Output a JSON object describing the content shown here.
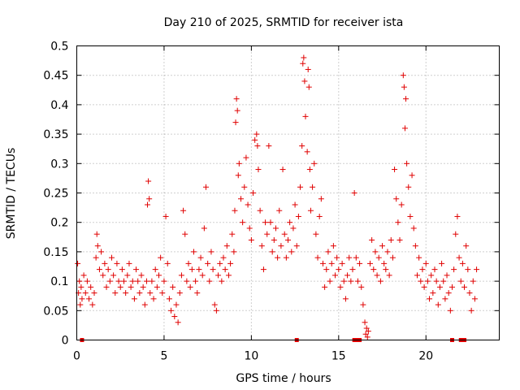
{
  "chart_data": {
    "type": "scatter",
    "title": "Day 210 of 2025, SRMTID for receiver ista",
    "xlabel": "GPS time / hours",
    "ylabel": "SRMTID / TECUs",
    "xlim": [
      0,
      24.2
    ],
    "ylim": [
      0,
      0.5
    ],
    "x_ticks": [
      "0",
      "5",
      "10",
      "15",
      "20"
    ],
    "y_ticks": [
      "0",
      "0.05",
      "0.1",
      "0.15",
      "0.2",
      "0.25",
      "0.3",
      "0.35",
      "0.4",
      "0.45",
      "0.5"
    ],
    "grid": true,
    "marker": "plus",
    "color": "#e00000",
    "series": [
      {
        "values_xy": [
          [
            0.05,
            0.13
          ],
          [
            0.1,
            0.08
          ],
          [
            0.15,
            0.1
          ],
          [
            0.2,
            0.06
          ],
          [
            0.25,
            0.09
          ],
          [
            0.3,
            0.07
          ],
          [
            0.4,
            0.11
          ],
          [
            0.5,
            0.08
          ],
          [
            0.6,
            0.1
          ],
          [
            0.7,
            0.07
          ],
          [
            0.8,
            0.09
          ],
          [
            0.9,
            0.06
          ],
          [
            1.0,
            0.08
          ],
          [
            1.1,
            0.14
          ],
          [
            1.15,
            0.18
          ],
          [
            1.2,
            0.16
          ],
          [
            1.3,
            0.12
          ],
          [
            1.4,
            0.15
          ],
          [
            1.5,
            0.11
          ],
          [
            1.6,
            0.13
          ],
          [
            1.7,
            0.09
          ],
          [
            1.8,
            0.12
          ],
          [
            1.9,
            0.1
          ],
          [
            2.0,
            0.14
          ],
          [
            2.1,
            0.11
          ],
          [
            2.2,
            0.08
          ],
          [
            2.3,
            0.13
          ],
          [
            2.4,
            0.1
          ],
          [
            2.5,
            0.09
          ],
          [
            2.6,
            0.12
          ],
          [
            2.7,
            0.1
          ],
          [
            2.8,
            0.08
          ],
          [
            2.9,
            0.11
          ],
          [
            3.0,
            0.13
          ],
          [
            3.1,
            0.09
          ],
          [
            3.2,
            0.1
          ],
          [
            3.3,
            0.07
          ],
          [
            3.4,
            0.12
          ],
          [
            3.5,
            0.1
          ],
          [
            3.6,
            0.08
          ],
          [
            3.7,
            0.11
          ],
          [
            3.8,
            0.09
          ],
          [
            3.9,
            0.06
          ],
          [
            4.0,
            0.1
          ],
          [
            4.05,
            0.23
          ],
          [
            4.1,
            0.27
          ],
          [
            4.15,
            0.24
          ],
          [
            4.2,
            0.08
          ],
          [
            4.3,
            0.1
          ],
          [
            4.4,
            0.07
          ],
          [
            4.5,
            0.12
          ],
          [
            4.6,
            0.09
          ],
          [
            4.7,
            0.11
          ],
          [
            4.8,
            0.14
          ],
          [
            4.9,
            0.08
          ],
          [
            5.0,
            0.1
          ],
          [
            5.1,
            0.21
          ],
          [
            5.2,
            0.13
          ],
          [
            5.3,
            0.07
          ],
          [
            5.4,
            0.05
          ],
          [
            5.5,
            0.09
          ],
          [
            5.6,
            0.04
          ],
          [
            5.7,
            0.06
          ],
          [
            5.8,
            0.03
          ],
          [
            5.9,
            0.08
          ],
          [
            6.0,
            0.11
          ],
          [
            6.1,
            0.22
          ],
          [
            6.2,
            0.18
          ],
          [
            6.3,
            0.1
          ],
          [
            6.4,
            0.13
          ],
          [
            6.5,
            0.09
          ],
          [
            6.6,
            0.12
          ],
          [
            6.7,
            0.15
          ],
          [
            6.8,
            0.1
          ],
          [
            6.9,
            0.08
          ],
          [
            7.0,
            0.12
          ],
          [
            7.1,
            0.14
          ],
          [
            7.2,
            0.11
          ],
          [
            7.3,
            0.19
          ],
          [
            7.4,
            0.26
          ],
          [
            7.5,
            0.13
          ],
          [
            7.6,
            0.1
          ],
          [
            7.7,
            0.15
          ],
          [
            7.8,
            0.12
          ],
          [
            7.9,
            0.06
          ],
          [
            8.0,
            0.05
          ],
          [
            8.1,
            0.11
          ],
          [
            8.2,
            0.13
          ],
          [
            8.3,
            0.1
          ],
          [
            8.4,
            0.14
          ],
          [
            8.5,
            0.12
          ],
          [
            8.6,
            0.16
          ],
          [
            8.7,
            0.11
          ],
          [
            8.8,
            0.13
          ],
          [
            8.9,
            0.18
          ],
          [
            9.0,
            0.15
          ],
          [
            9.05,
            0.22
          ],
          [
            9.1,
            0.37
          ],
          [
            9.15,
            0.41
          ],
          [
            9.2,
            0.39
          ],
          [
            9.25,
            0.28
          ],
          [
            9.3,
            0.3
          ],
          [
            9.4,
            0.24
          ],
          [
            9.5,
            0.2
          ],
          [
            9.6,
            0.26
          ],
          [
            9.7,
            0.31
          ],
          [
            9.8,
            0.23
          ],
          [
            9.9,
            0.19
          ],
          [
            10.0,
            0.17
          ],
          [
            10.1,
            0.25
          ],
          [
            10.2,
            0.34
          ],
          [
            10.3,
            0.35
          ],
          [
            10.35,
            0.33
          ],
          [
            10.4,
            0.29
          ],
          [
            10.5,
            0.22
          ],
          [
            10.6,
            0.16
          ],
          [
            10.7,
            0.12
          ],
          [
            10.8,
            0.2
          ],
          [
            10.9,
            0.18
          ],
          [
            11.0,
            0.33
          ],
          [
            11.1,
            0.2
          ],
          [
            11.2,
            0.15
          ],
          [
            11.3,
            0.17
          ],
          [
            11.4,
            0.19
          ],
          [
            11.5,
            0.14
          ],
          [
            11.6,
            0.22
          ],
          [
            11.7,
            0.16
          ],
          [
            11.8,
            0.29
          ],
          [
            11.9,
            0.18
          ],
          [
            12.0,
            0.14
          ],
          [
            12.1,
            0.17
          ],
          [
            12.2,
            0.2
          ],
          [
            12.3,
            0.15
          ],
          [
            12.4,
            0.19
          ],
          [
            12.5,
            0.23
          ],
          [
            12.6,
            0.16
          ],
          [
            12.7,
            0.21
          ],
          [
            12.8,
            0.26
          ],
          [
            12.9,
            0.33
          ],
          [
            12.95,
            0.47
          ],
          [
            13.0,
            0.48
          ],
          [
            13.05,
            0.44
          ],
          [
            13.1,
            0.38
          ],
          [
            13.2,
            0.32
          ],
          [
            13.25,
            0.46
          ],
          [
            13.3,
            0.43
          ],
          [
            13.35,
            0.29
          ],
          [
            13.4,
            0.22
          ],
          [
            13.5,
            0.26
          ],
          [
            13.6,
            0.3
          ],
          [
            13.7,
            0.18
          ],
          [
            13.8,
            0.14
          ],
          [
            13.9,
            0.21
          ],
          [
            14.0,
            0.24
          ],
          [
            14.1,
            0.13
          ],
          [
            14.2,
            0.09
          ],
          [
            14.3,
            0.12
          ],
          [
            14.4,
            0.15
          ],
          [
            14.5,
            0.1
          ],
          [
            14.6,
            0.13
          ],
          [
            14.7,
            0.16
          ],
          [
            14.8,
            0.11
          ],
          [
            14.9,
            0.14
          ],
          [
            15.0,
            0.12
          ],
          [
            15.1,
            0.09
          ],
          [
            15.2,
            0.13
          ],
          [
            15.3,
            0.1
          ],
          [
            15.4,
            0.07
          ],
          [
            15.5,
            0.11
          ],
          [
            15.6,
            0.14
          ],
          [
            15.7,
            0.1
          ],
          [
            15.8,
            0.12
          ],
          [
            15.9,
            0.25
          ],
          [
            16.0,
            0.14
          ],
          [
            16.1,
            0.1
          ],
          [
            16.2,
            0.13
          ],
          [
            16.3,
            0.09
          ],
          [
            16.4,
            0.06
          ],
          [
            16.5,
            0.03
          ],
          [
            16.55,
            0.01
          ],
          [
            16.6,
            0.02
          ],
          [
            16.65,
            0.005
          ],
          [
            16.7,
            0.015
          ],
          [
            16.8,
            0.13
          ],
          [
            16.9,
            0.17
          ],
          [
            17.0,
            0.12
          ],
          [
            17.1,
            0.15
          ],
          [
            17.2,
            0.11
          ],
          [
            17.3,
            0.14
          ],
          [
            17.4,
            0.1
          ],
          [
            17.5,
            0.16
          ],
          [
            17.6,
            0.13
          ],
          [
            17.7,
            0.12
          ],
          [
            17.8,
            0.15
          ],
          [
            17.9,
            0.11
          ],
          [
            18.0,
            0.17
          ],
          [
            18.1,
            0.14
          ],
          [
            18.2,
            0.29
          ],
          [
            18.3,
            0.24
          ],
          [
            18.4,
            0.2
          ],
          [
            18.5,
            0.17
          ],
          [
            18.6,
            0.23
          ],
          [
            18.7,
            0.45
          ],
          [
            18.75,
            0.43
          ],
          [
            18.8,
            0.36
          ],
          [
            18.85,
            0.41
          ],
          [
            18.9,
            0.3
          ],
          [
            19.0,
            0.26
          ],
          [
            19.1,
            0.21
          ],
          [
            19.2,
            0.28
          ],
          [
            19.3,
            0.19
          ],
          [
            19.4,
            0.16
          ],
          [
            19.5,
            0.11
          ],
          [
            19.6,
            0.14
          ],
          [
            19.7,
            0.1
          ],
          [
            19.8,
            0.12
          ],
          [
            19.9,
            0.09
          ],
          [
            20.0,
            0.13
          ],
          [
            20.1,
            0.1
          ],
          [
            20.2,
            0.07
          ],
          [
            20.3,
            0.11
          ],
          [
            20.4,
            0.08
          ],
          [
            20.5,
            0.12
          ],
          [
            20.6,
            0.1
          ],
          [
            20.7,
            0.06
          ],
          [
            20.8,
            0.09
          ],
          [
            20.9,
            0.13
          ],
          [
            21.0,
            0.1
          ],
          [
            21.1,
            0.07
          ],
          [
            21.2,
            0.11
          ],
          [
            21.3,
            0.08
          ],
          [
            21.4,
            0.05
          ],
          [
            21.5,
            0.09
          ],
          [
            21.6,
            0.12
          ],
          [
            21.7,
            0.18
          ],
          [
            21.8,
            0.21
          ],
          [
            21.9,
            0.14
          ],
          [
            22.0,
            0.1
          ],
          [
            22.1,
            0.13
          ],
          [
            22.2,
            0.09
          ],
          [
            22.3,
            0.16
          ],
          [
            22.4,
            0.12
          ],
          [
            22.5,
            0.08
          ],
          [
            22.6,
            0.05
          ],
          [
            22.7,
            0.1
          ],
          [
            22.8,
            0.07
          ],
          [
            22.9,
            0.12
          ]
        ]
      }
    ],
    "zero_markers_x": [
      0.3,
      12.6,
      15.9,
      16.05,
      16.2,
      21.5,
      22.0,
      22.2
    ]
  }
}
